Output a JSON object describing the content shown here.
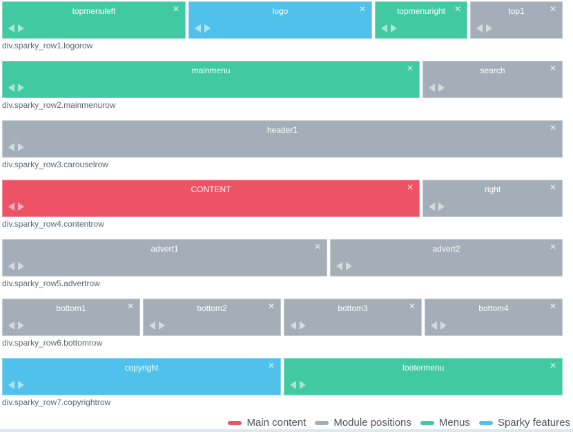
{
  "colors": {
    "main_content": "#ee5365",
    "module_positions": "#a4aeb9",
    "menus": "#41c9a2",
    "sparky_features": "#4fc1ea"
  },
  "icons": {
    "close": "✕",
    "move_left": "left-triangle",
    "move_right": "right-triangle"
  },
  "rows": [
    {
      "label": "div.sparky_row1.logorow",
      "blocks": [
        {
          "name": "topmenuleft",
          "type": "menus",
          "span": 4
        },
        {
          "name": "logo",
          "type": "sparky_features",
          "span": 4
        },
        {
          "name": "topmenuright",
          "type": "menus",
          "span": 2
        },
        {
          "name": "top1",
          "type": "module_positions",
          "span": 2
        }
      ]
    },
    {
      "label": "div.sparky_row2.mainmenurow",
      "blocks": [
        {
          "name": "mainmenu",
          "type": "menus",
          "span": 9
        },
        {
          "name": "search",
          "type": "module_positions",
          "span": 3
        }
      ]
    },
    {
      "label": "div.sparky_row3.carouselrow",
      "blocks": [
        {
          "name": "header1",
          "type": "module_positions",
          "span": 12
        }
      ]
    },
    {
      "label": "div.sparky_row4.contentrow",
      "blocks": [
        {
          "name": "CONTENT",
          "type": "main_content",
          "span": 9
        },
        {
          "name": "right",
          "type": "module_positions",
          "span": 3
        }
      ]
    },
    {
      "label": "div.sparky_row5.advertrow",
      "blocks": [
        {
          "name": "advert1",
          "type": "module_positions",
          "span": 7
        },
        {
          "name": "advert2",
          "type": "module_positions",
          "span": 5
        }
      ]
    },
    {
      "label": "div.sparky_row6.bottomrow",
      "blocks": [
        {
          "name": "bottom1",
          "type": "module_positions",
          "span": 3
        },
        {
          "name": "bottom2",
          "type": "module_positions",
          "span": 3
        },
        {
          "name": "bottom3",
          "type": "module_positions",
          "span": 3
        },
        {
          "name": "bottom4",
          "type": "module_positions",
          "span": 3
        }
      ]
    },
    {
      "label": "div.sparky_row7.copyrightrow",
      "blocks": [
        {
          "name": "copyright",
          "type": "sparky_features",
          "span": 6
        },
        {
          "name": "footermenu",
          "type": "menus",
          "span": 6
        }
      ]
    }
  ],
  "legend": [
    {
      "key": "main_content",
      "label": "Main content"
    },
    {
      "key": "module_positions",
      "label": "Module positions"
    },
    {
      "key": "menus",
      "label": "Menus"
    },
    {
      "key": "sparky_features",
      "label": "Sparky features"
    }
  ]
}
